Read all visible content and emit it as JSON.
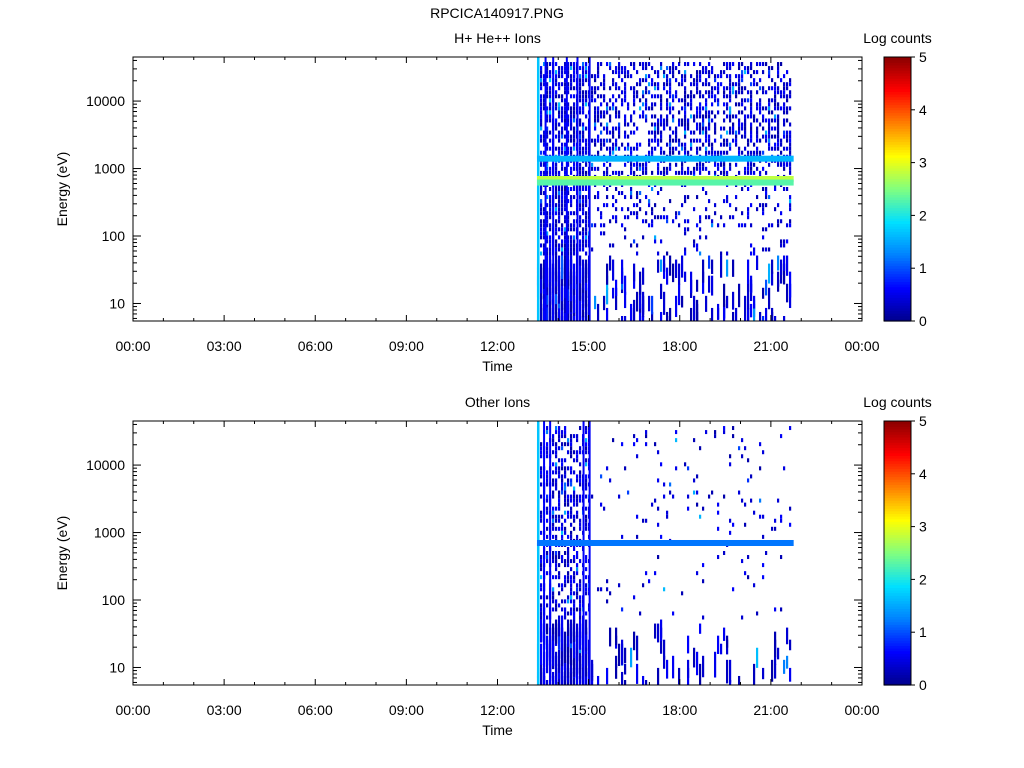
{
  "figure_title": "RPCICA140917.PNG",
  "colors": {
    "background": "#ffffff",
    "axes": "#000000",
    "colormap": [
      "#00008a",
      "#0000ff",
      "#0080ff",
      "#00e0ff",
      "#80ff80",
      "#ffff00",
      "#ff8000",
      "#ff0000",
      "#8a0000"
    ]
  },
  "chart_data": [
    {
      "type": "heatmap",
      "title": "H+ He++ Ions",
      "xlabel": "Time",
      "ylabel": "Energy (eV)",
      "x_ticks": [
        "00:00",
        "03:00",
        "06:00",
        "09:00",
        "12:00",
        "15:00",
        "18:00",
        "21:00",
        "00:00"
      ],
      "xlim_hours": [
        0,
        24
      ],
      "y_scale": "log",
      "y_ticks": [
        "10",
        "100",
        "1000",
        "10000"
      ],
      "ylim": [
        5.5,
        45000
      ],
      "colorbar_label": "Log counts",
      "colorbar_ticks": [
        "0",
        "1",
        "2",
        "3",
        "4",
        "5"
      ],
      "clim": [
        0,
        5
      ],
      "data_start_hour": 13.3,
      "data_end_hour": 21.75,
      "bands": [
        {
          "energy_eV": 700,
          "level": 2.8,
          "start_hour": 13.3,
          "end_hour": 21.75
        },
        {
          "energy_eV": 620,
          "level": 2.3,
          "start_hour": 13.3,
          "end_hour": 21.75
        },
        {
          "energy_eV": 1400,
          "level": 1.6,
          "start_hour": 13.3,
          "end_hour": 21.75
        }
      ],
      "grid": false
    },
    {
      "type": "heatmap",
      "title": "Other Ions",
      "xlabel": "Time",
      "ylabel": "Energy (eV)",
      "x_ticks": [
        "00:00",
        "03:00",
        "06:00",
        "09:00",
        "12:00",
        "15:00",
        "18:00",
        "21:00",
        "00:00"
      ],
      "xlim_hours": [
        0,
        24
      ],
      "y_scale": "log",
      "y_ticks": [
        "10",
        "100",
        "1000",
        "10000"
      ],
      "ylim": [
        5.5,
        45000
      ],
      "colorbar_label": "Log counts",
      "colorbar_ticks": [
        "0",
        "1",
        "2",
        "3",
        "4",
        "5"
      ],
      "clim": [
        0,
        5
      ],
      "data_start_hour": 13.3,
      "data_end_hour": 21.75,
      "bands": [
        {
          "energy_eV": 700,
          "level": 1.2,
          "start_hour": 13.3,
          "end_hour": 21.75
        }
      ],
      "grid": false
    }
  ]
}
